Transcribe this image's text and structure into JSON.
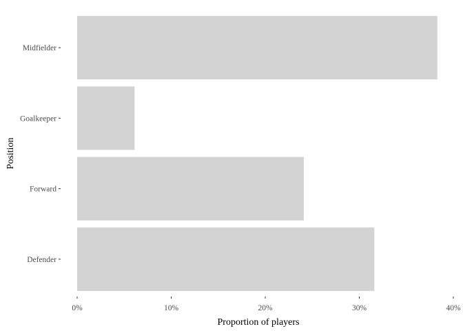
{
  "chart_data": {
    "type": "bar",
    "orientation": "horizontal",
    "title": "",
    "xlabel": "Proportion of players",
    "ylabel": "Position",
    "categories": [
      "Defender",
      "Forward",
      "Goalkeeper",
      "Midfielder"
    ],
    "values": [
      0.316,
      0.241,
      0.061,
      0.383
    ],
    "xlim": [
      0,
      0.4
    ],
    "xticks": [
      0,
      0.1,
      0.2,
      0.3,
      0.4
    ],
    "xtick_labels": [
      "0%",
      "10%",
      "20%",
      "30%",
      "40%"
    ],
    "grid": false,
    "legend": "none",
    "bar_color": "#d3d3d3",
    "tick_text_color": "#4d4d4d",
    "tick_mark_color": "#333333"
  }
}
